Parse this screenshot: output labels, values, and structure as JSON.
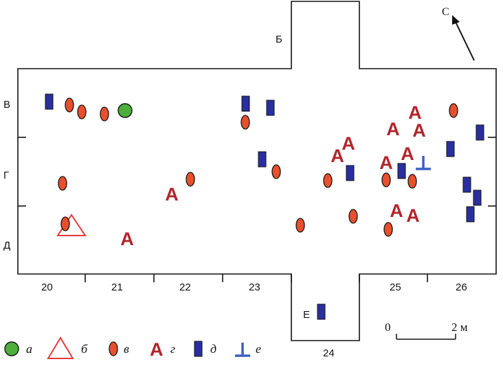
{
  "north_label": "С",
  "row_labels": [
    "В",
    "Г",
    "Д"
  ],
  "column_labels": [
    "20",
    "21",
    "22",
    "23",
    "24",
    "25",
    "26"
  ],
  "section_labels": {
    "top": "Б",
    "bottom": "Е"
  },
  "scale": {
    "start": "0",
    "end": "2 м"
  },
  "colors": {
    "green": "#4caf3c",
    "red_outline": "#e53935",
    "orange": "#e8502c",
    "dark_red": "#b0262b",
    "blue": "#2a2f9e",
    "blue_t": "#3b5fc4"
  },
  "legend": [
    {
      "symbol": "green-circle-icon",
      "label": "а"
    },
    {
      "symbol": "red-triangle-icon",
      "label": "б"
    },
    {
      "symbol": "orange-oval-icon",
      "label": "в"
    },
    {
      "symbol": "letter-a-icon",
      "label": "г",
      "glyph": "А"
    },
    {
      "symbol": "blue-rectangle-icon",
      "label": "д"
    },
    {
      "symbol": "blue-t-icon",
      "label": "е"
    }
  ],
  "glyph_A": "А"
}
